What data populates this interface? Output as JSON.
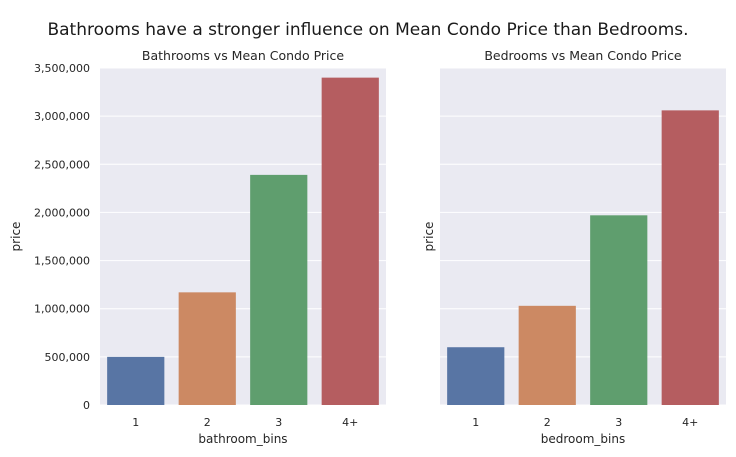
{
  "suptitle": "Bathrooms have a stronger influence on Mean Condo Price than Bedrooms.",
  "colors": {
    "background": "#eaeaf2",
    "grid": "#ffffff",
    "bars": [
      "#5875a4",
      "#cc8963",
      "#5f9e6e",
      "#b55d60"
    ]
  },
  "chart_data": [
    {
      "type": "bar",
      "title": "Bathrooms vs Mean Condo Price",
      "xlabel": "bathroom_bins",
      "ylabel": "price",
      "categories": [
        "1",
        "2",
        "3",
        "4+"
      ],
      "values": [
        500000,
        1170000,
        2390000,
        3400000
      ],
      "ylim": [
        0,
        3500000
      ],
      "yticks": [
        0,
        500000,
        1000000,
        1500000,
        2000000,
        2500000,
        3000000,
        3500000
      ],
      "ytick_labels": [
        "0",
        "500,000",
        "1,000,000",
        "1,500,000",
        "2,000,000",
        "2,500,000",
        "3,000,000",
        "3,500,000"
      ],
      "grid": true
    },
    {
      "type": "bar",
      "title": "Bedrooms vs Mean Condo Price",
      "xlabel": "bedroom_bins",
      "ylabel": "price",
      "categories": [
        "1",
        "2",
        "3",
        "4+"
      ],
      "values": [
        600000,
        1030000,
        1970000,
        3060000
      ],
      "ylim": [
        0,
        3500000
      ],
      "yticks": [
        0,
        500000,
        1000000,
        1500000,
        2000000,
        2500000,
        3000000,
        3500000
      ],
      "ytick_labels": [],
      "grid": true,
      "sharey": true
    }
  ]
}
